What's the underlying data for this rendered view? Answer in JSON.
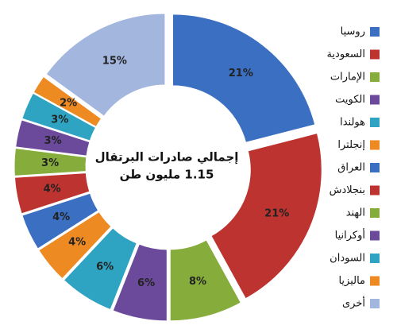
{
  "chart_data": {
    "type": "doughnut",
    "center_text": [
      "إجمالي صادرات البرتقال",
      "1.15 مليون طن"
    ],
    "categories": [
      "روسيا",
      "السعودية",
      "الإمارات",
      "الكويت",
      "هولندا",
      "إنجلترا",
      "العراق",
      "بنجلادش",
      "الهند",
      "أوكرانيا",
      "السودان",
      "ماليزيا",
      "أخرى"
    ],
    "values": [
      21,
      21,
      8,
      6,
      6,
      4,
      4,
      4,
      3,
      3,
      3,
      2,
      15
    ],
    "value_labels": [
      "21%",
      "21%",
      "8%",
      "6%",
      "6%",
      "4%",
      "4%",
      "4%",
      "3%",
      "3%",
      "3%",
      "2%",
      "15%"
    ],
    "colors": [
      "#3b6fc2",
      "#bd3330",
      "#86ad3c",
      "#6c4a9b",
      "#2ea4c2",
      "#ee8a22",
      "#3b6fc2",
      "#bd3330",
      "#86ad3c",
      "#6c4a9b",
      "#2ea4c2",
      "#ee8a22",
      "#a3b6de"
    ],
    "legend": "right"
  }
}
